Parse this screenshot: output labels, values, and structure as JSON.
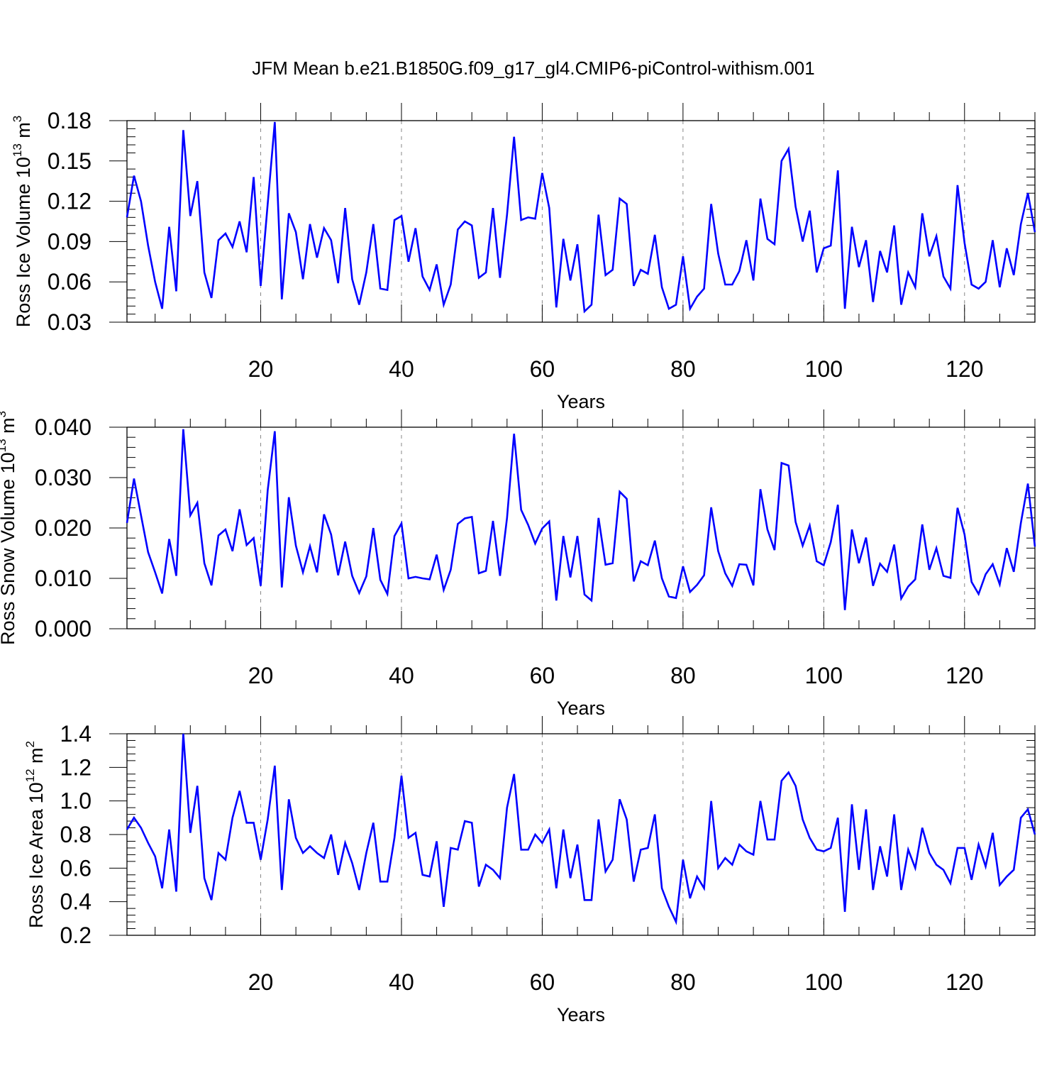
{
  "title": "JFM Mean b.e21.B1850G.f09_g17_gl4.CMIP6-piControl-withism.001",
  "colors": {
    "line": "#0000ff",
    "axis": "#000000",
    "grid": "#888888"
  },
  "chart_data": [
    {
      "type": "line",
      "xlabel": "Years",
      "ylabel": {
        "text": "Ross Ice Volume 10",
        "exp1": "13",
        "unit": " m",
        "exp2": "3"
      },
      "xlim": [
        1,
        130
      ],
      "ylim": [
        0.03,
        0.18
      ],
      "xticks": [
        20,
        40,
        60,
        80,
        100,
        120
      ],
      "yticks": [
        0.03,
        0.06,
        0.09,
        0.12,
        0.15,
        0.18
      ],
      "ytick_labels": [
        "0.03",
        "0.06",
        "0.09",
        "0.12",
        "0.15",
        "0.18"
      ],
      "grid": "vertical dashed at x ticks",
      "series": [
        {
          "values": [
            0.108,
            0.139,
            0.12,
            0.087,
            0.06,
            0.04,
            0.101,
            0.053,
            0.173,
            0.109,
            0.135,
            0.067,
            0.048,
            0.091,
            0.096,
            0.086,
            0.105,
            0.082,
            0.138,
            0.057,
            0.118,
            0.179,
            0.047,
            0.111,
            0.097,
            0.062,
            0.103,
            0.078,
            0.1,
            0.091,
            0.059,
            0.115,
            0.062,
            0.043,
            0.067,
            0.103,
            0.055,
            0.054,
            0.106,
            0.109,
            0.075,
            0.1,
            0.064,
            0.054,
            0.073,
            0.043,
            0.058,
            0.099,
            0.105,
            0.102,
            0.063,
            0.067,
            0.115,
            0.063,
            0.11,
            0.168,
            0.106,
            0.108,
            0.107,
            0.141,
            0.115,
            0.041,
            0.092,
            0.061,
            0.088,
            0.038,
            0.043,
            0.11,
            0.065,
            0.069,
            0.122,
            0.118,
            0.057,
            0.069,
            0.066,
            0.095,
            0.056,
            0.04,
            0.043,
            0.079,
            0.04,
            0.049,
            0.055,
            0.118,
            0.081,
            0.058,
            0.058,
            0.068,
            0.091,
            0.061,
            0.122,
            0.092,
            0.088,
            0.15,
            0.159,
            0.116,
            0.09,
            0.113,
            0.067,
            0.085,
            0.087,
            0.143,
            0.04,
            0.101,
            0.071,
            0.091,
            0.045,
            0.083,
            0.067,
            0.102,
            0.043,
            0.067,
            0.056,
            0.111,
            0.079,
            0.094,
            0.064,
            0.055,
            0.132,
            0.089,
            0.058,
            0.055,
            0.06,
            0.091,
            0.056,
            0.085,
            0.065,
            0.103,
            0.126,
            0.097
          ]
        }
      ]
    },
    {
      "type": "line",
      "xlabel": "Years",
      "ylabel": {
        "text": "Ross Snow Volume 10",
        "exp1": "13",
        "unit": " m",
        "exp2": "3"
      },
      "xlim": [
        1,
        130
      ],
      "ylim": [
        0.0,
        0.04
      ],
      "xticks": [
        20,
        40,
        60,
        80,
        100,
        120
      ],
      "yticks": [
        0.0,
        0.01,
        0.02,
        0.03,
        0.04
      ],
      "ytick_labels": [
        "0.000",
        "0.010",
        "0.020",
        "0.030",
        "0.040"
      ],
      "grid": "vertical dashed at x ticks",
      "series": [
        {
          "values": [
            0.021,
            0.0298,
            0.0225,
            0.0152,
            0.0112,
            0.007,
            0.0178,
            0.0105,
            0.0396,
            0.0225,
            0.025,
            0.013,
            0.0086,
            0.0185,
            0.0197,
            0.0154,
            0.0237,
            0.0166,
            0.018,
            0.0085,
            0.0275,
            0.0392,
            0.0082,
            0.0261,
            0.0165,
            0.0112,
            0.0164,
            0.0112,
            0.0227,
            0.0187,
            0.0106,
            0.0173,
            0.0105,
            0.0071,
            0.0104,
            0.02,
            0.0097,
            0.0069,
            0.0184,
            0.0209,
            0.01,
            0.0103,
            0.01,
            0.0098,
            0.0147,
            0.0077,
            0.0117,
            0.0208,
            0.0219,
            0.0222,
            0.011,
            0.0115,
            0.0214,
            0.0105,
            0.022,
            0.0387,
            0.0236,
            0.0206,
            0.0169,
            0.0199,
            0.0213,
            0.0056,
            0.0184,
            0.0102,
            0.0184,
            0.0068,
            0.0056,
            0.022,
            0.0127,
            0.013,
            0.0272,
            0.0258,
            0.0094,
            0.0134,
            0.0126,
            0.0175,
            0.01,
            0.0064,
            0.0061,
            0.0124,
            0.0073,
            0.0087,
            0.0106,
            0.0241,
            0.0154,
            0.011,
            0.0085,
            0.0128,
            0.0127,
            0.0086,
            0.0277,
            0.0197,
            0.0156,
            0.0329,
            0.0324,
            0.0212,
            0.0165,
            0.0205,
            0.0134,
            0.0126,
            0.0172,
            0.0246,
            0.0037,
            0.0197,
            0.013,
            0.0181,
            0.0085,
            0.0129,
            0.0113,
            0.0167,
            0.006,
            0.0084,
            0.0098,
            0.0207,
            0.0117,
            0.016,
            0.0105,
            0.0101,
            0.024,
            0.0187,
            0.0093,
            0.0069,
            0.0108,
            0.0128,
            0.0088,
            0.016,
            0.0113,
            0.021,
            0.0288,
            0.0163
          ]
        }
      ]
    },
    {
      "type": "line",
      "xlabel": "Years",
      "ylabel": {
        "text": "Ross Ice Area 10",
        "exp1": "12",
        "unit": " m",
        "exp2": "2"
      },
      "xlim": [
        1,
        130
      ],
      "ylim": [
        0.2,
        1.4
      ],
      "xticks": [
        20,
        40,
        60,
        80,
        100,
        120
      ],
      "yticks": [
        0.2,
        0.4,
        0.6,
        0.8,
        1.0,
        1.2,
        1.4
      ],
      "ytick_labels": [
        "0.2",
        "0.4",
        "0.6",
        "0.8",
        "1.0",
        "1.2",
        "1.4"
      ],
      "grid": "vertical dashed at x ticks",
      "series": [
        {
          "values": [
            0.83,
            0.9,
            0.84,
            0.75,
            0.67,
            0.48,
            0.83,
            0.46,
            1.4,
            0.81,
            1.09,
            0.54,
            0.41,
            0.69,
            0.65,
            0.9,
            1.06,
            0.87,
            0.87,
            0.65,
            0.89,
            1.21,
            0.47,
            1.01,
            0.78,
            0.69,
            0.73,
            0.69,
            0.66,
            0.8,
            0.56,
            0.75,
            0.63,
            0.47,
            0.69,
            0.87,
            0.52,
            0.52,
            0.78,
            1.15,
            0.78,
            0.81,
            0.56,
            0.55,
            0.76,
            0.37,
            0.72,
            0.71,
            0.88,
            0.87,
            0.49,
            0.62,
            0.59,
            0.54,
            0.96,
            1.16,
            0.71,
            0.71,
            0.8,
            0.75,
            0.83,
            0.48,
            0.83,
            0.54,
            0.74,
            0.41,
            0.41,
            0.89,
            0.58,
            0.65,
            1.01,
            0.89,
            0.52,
            0.71,
            0.72,
            0.92,
            0.48,
            0.37,
            0.28,
            0.65,
            0.42,
            0.55,
            0.48,
            1.0,
            0.6,
            0.66,
            0.62,
            0.74,
            0.7,
            0.68,
            1.0,
            0.77,
            0.77,
            1.12,
            1.17,
            1.09,
            0.89,
            0.78,
            0.71,
            0.7,
            0.72,
            0.9,
            0.34,
            0.98,
            0.59,
            0.95,
            0.47,
            0.73,
            0.55,
            0.92,
            0.47,
            0.71,
            0.6,
            0.84,
            0.69,
            0.62,
            0.59,
            0.51,
            0.72,
            0.72,
            0.53,
            0.74,
            0.61,
            0.81,
            0.5,
            0.55,
            0.59,
            0.9,
            0.95,
            0.8
          ]
        }
      ]
    }
  ]
}
